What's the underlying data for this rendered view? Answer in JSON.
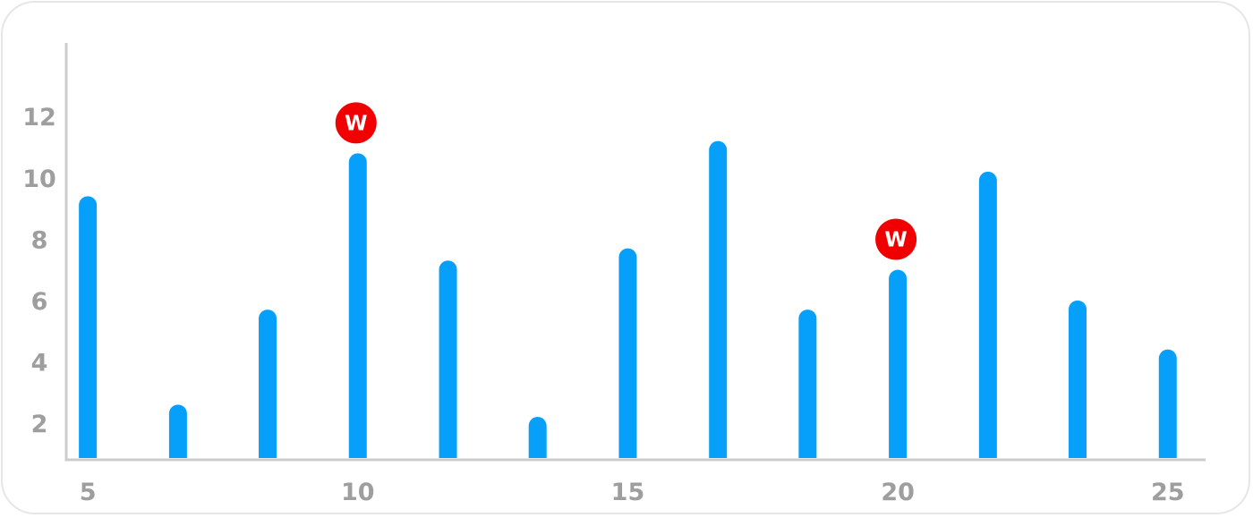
{
  "chart_data": {
    "type": "bar",
    "title": "",
    "xlabel": "",
    "ylabel": "",
    "x": [
      5,
      6.67,
      8.33,
      10,
      11.67,
      13.33,
      15,
      16.67,
      18.33,
      20,
      21.67,
      23.33,
      25
    ],
    "values": [
      9.4,
      2.6,
      5.7,
      10.8,
      7.3,
      2.2,
      7.7,
      11.2,
      5.7,
      7.0,
      10.2,
      6.0,
      4.4
    ],
    "xlim": [
      4.6,
      25.7
    ],
    "ylim": [
      0.8,
      14.4
    ],
    "xticks": [
      5,
      10,
      15,
      20,
      25
    ],
    "yticks": [
      2,
      4,
      6,
      8,
      10,
      12
    ],
    "bar_color": "#06a0fa",
    "grid": false,
    "annotations": [
      {
        "index": 3,
        "label": "W",
        "color": "#f00000"
      },
      {
        "index": 9,
        "label": "W",
        "color": "#f00000"
      }
    ]
  }
}
